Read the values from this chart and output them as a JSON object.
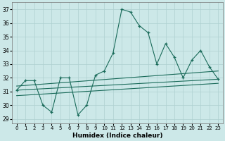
{
  "x": [
    0,
    1,
    2,
    3,
    4,
    5,
    6,
    7,
    8,
    9,
    10,
    11,
    12,
    13,
    14,
    15,
    16,
    17,
    18,
    19,
    20,
    21,
    22,
    23
  ],
  "y_main": [
    31.1,
    31.8,
    31.8,
    30.0,
    29.5,
    32.0,
    32.0,
    29.3,
    30.0,
    32.2,
    32.5,
    33.8,
    37.0,
    36.8,
    35.8,
    35.3,
    33.0,
    34.5,
    33.5,
    32.0,
    33.3,
    34.0,
    32.8,
    31.9
  ],
  "line_color": "#1a6b5a",
  "bg_color": "#cce8e8",
  "grid_color": "#aed0d0",
  "xlabel": "Humidex (Indice chaleur)",
  "yticks": [
    29,
    30,
    31,
    32,
    33,
    34,
    35,
    36,
    37
  ],
  "xticks": [
    0,
    1,
    2,
    3,
    4,
    5,
    6,
    7,
    8,
    9,
    10,
    11,
    12,
    13,
    14,
    15,
    16,
    17,
    18,
    19,
    20,
    21,
    22,
    23
  ],
  "ylim": [
    28.7,
    37.5
  ],
  "xlim": [
    -0.5,
    23.5
  ],
  "trend_lines": [
    {
      "x0": 0,
      "y0": 31.1,
      "x1": 23,
      "y1": 31.9
    },
    {
      "x0": 0,
      "y0": 31.4,
      "x1": 23,
      "y1": 32.5
    },
    {
      "x0": 0,
      "y0": 30.7,
      "x1": 23,
      "y1": 31.6
    }
  ]
}
